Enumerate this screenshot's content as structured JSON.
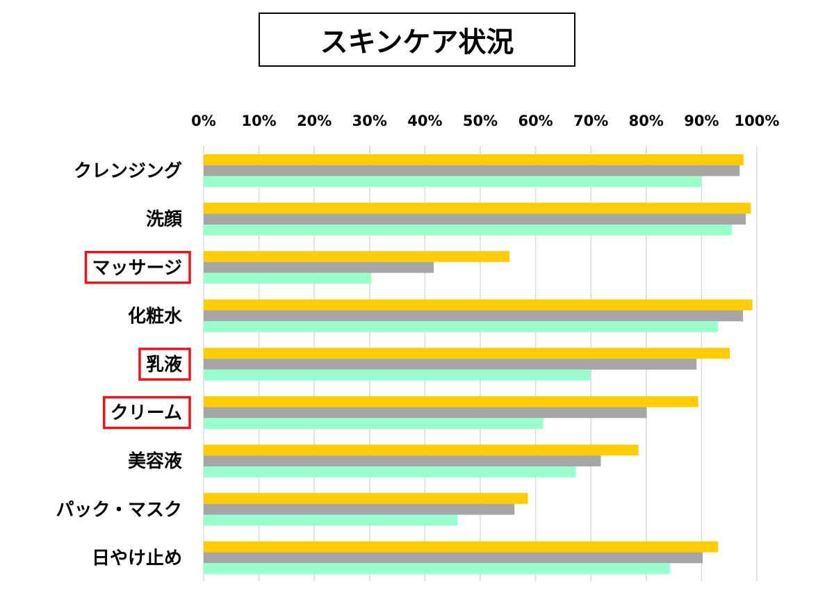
{
  "chart_data": {
    "type": "bar",
    "orientation": "horizontal",
    "title": "スキンケア状況",
    "xlabel": "",
    "ylabel": "",
    "xlim": [
      0,
      100
    ],
    "x_ticks": [
      "0%",
      "10%",
      "20%",
      "30%",
      "40%",
      "50%",
      "60%",
      "70%",
      "80%",
      "90%",
      "100%"
    ],
    "grid": true,
    "categories": [
      "クレンジング",
      "洗顔",
      "マッサージ",
      "化粧水",
      "乳液",
      "クリーム",
      "美容液",
      "パック・マスク",
      "日やけ止め"
    ],
    "highlighted_categories": [
      "マッサージ",
      "乳液",
      "クリーム"
    ],
    "series": [
      {
        "name": "yellow",
        "color": "#FFCC00",
        "values": [
          97.6,
          98.9,
          55.3,
          99.2,
          95.1,
          89.4,
          78.6,
          58.6,
          93.0
        ]
      },
      {
        "name": "gray",
        "color": "#A6A6A6",
        "values": [
          96.9,
          98.0,
          41.6,
          97.5,
          89.1,
          80.1,
          71.8,
          56.2,
          90.2
        ]
      },
      {
        "name": "green",
        "color": "#99FFCC",
        "values": [
          90.0,
          95.5,
          30.3,
          93.0,
          69.9,
          61.4,
          67.3,
          45.9,
          84.3
        ]
      }
    ],
    "highlight_color": "#E8141B"
  }
}
